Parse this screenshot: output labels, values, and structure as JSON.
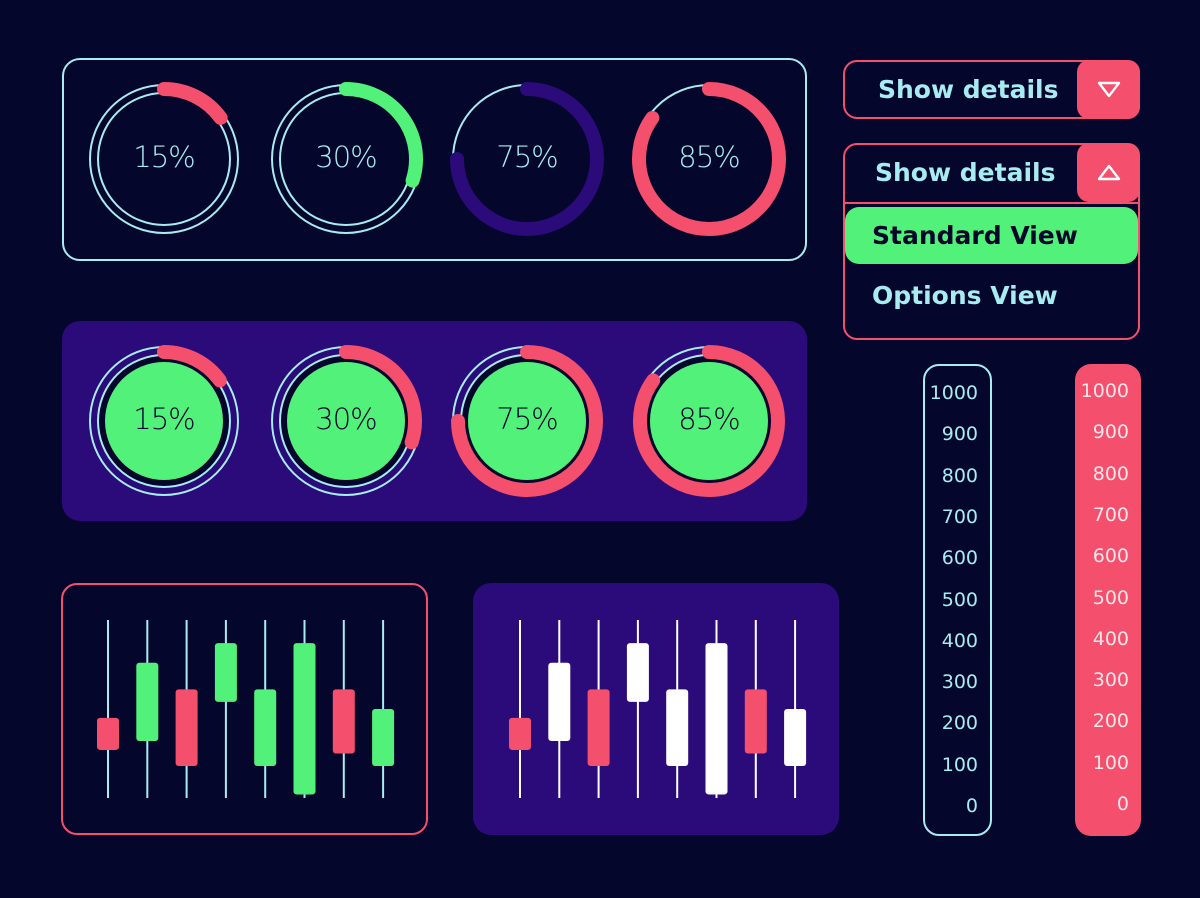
{
  "colors": {
    "background": "#05062c",
    "outline": "#a6ecf0",
    "panel_fill": "#2b0a7a",
    "accent_red": "#f44f6d",
    "accent_green": "#52f27a",
    "accent_purple": "#2b0a7a",
    "candle_white": "#ffffff"
  },
  "progress_rings_outline": [
    {
      "value": 15,
      "label": "15%",
      "color": "#f44f6d"
    },
    {
      "value": 30,
      "label": "30%",
      "color": "#52f27a"
    },
    {
      "value": 75,
      "label": "75%",
      "color": "#2b0a7a"
    },
    {
      "value": 85,
      "label": "85%",
      "color": "#f44f6d"
    }
  ],
  "progress_rings_filled": [
    {
      "value": 15,
      "label": "15%",
      "color": "#f44f6d"
    },
    {
      "value": 30,
      "label": "30%",
      "color": "#f44f6d"
    },
    {
      "value": 75,
      "label": "75%",
      "color": "#f44f6d"
    },
    {
      "value": 85,
      "label": "85%",
      "color": "#f44f6d"
    }
  ],
  "dropdown_closed": {
    "label": "Show details",
    "icon": "triangle-down-icon"
  },
  "dropdown_open": {
    "label": "Show details",
    "icon": "triangle-up-icon",
    "options": [
      {
        "label": "Standard View",
        "selected": true
      },
      {
        "label": "Options View",
        "selected": false
      }
    ]
  },
  "scale_light": {
    "ticks": [
      "1000",
      "900",
      "800",
      "700",
      "600",
      "500",
      "400",
      "300",
      "200",
      "100",
      "0"
    ]
  },
  "scale_red": {
    "ticks": [
      "1000",
      "900",
      "800",
      "700",
      "600",
      "500",
      "400",
      "300",
      "200",
      "100",
      "0"
    ]
  },
  "chart_data": [
    {
      "type": "candlestick",
      "ylim": [
        0,
        100
      ],
      "candles": [
        {
          "low": 0,
          "high": 100,
          "open": 45,
          "close": 27,
          "color": "#f44f6d"
        },
        {
          "low": 0,
          "high": 100,
          "open": 32,
          "close": 76,
          "color": "#52f27a"
        },
        {
          "low": 0,
          "high": 100,
          "open": 61,
          "close": 18,
          "color": "#f44f6d"
        },
        {
          "low": 0,
          "high": 100,
          "open": 54,
          "close": 87,
          "color": "#52f27a"
        },
        {
          "low": 0,
          "high": 100,
          "open": 18,
          "close": 61,
          "color": "#52f27a"
        },
        {
          "low": 0,
          "high": 100,
          "open": 2,
          "close": 87,
          "color": "#52f27a"
        },
        {
          "low": 0,
          "high": 100,
          "open": 61,
          "close": 25,
          "color": "#f44f6d"
        },
        {
          "low": 0,
          "high": 100,
          "open": 18,
          "close": 50,
          "color": "#52f27a"
        }
      ]
    },
    {
      "type": "candlestick",
      "ylim": [
        0,
        100
      ],
      "candles": [
        {
          "low": 0,
          "high": 100,
          "open": 45,
          "close": 27,
          "color": "#f44f6d"
        },
        {
          "low": 0,
          "high": 100,
          "open": 32,
          "close": 76,
          "color": "#ffffff"
        },
        {
          "low": 0,
          "high": 100,
          "open": 61,
          "close": 18,
          "color": "#f44f6d"
        },
        {
          "low": 0,
          "high": 100,
          "open": 54,
          "close": 87,
          "color": "#ffffff"
        },
        {
          "low": 0,
          "high": 100,
          "open": 18,
          "close": 61,
          "color": "#ffffff"
        },
        {
          "low": 0,
          "high": 100,
          "open": 2,
          "close": 87,
          "color": "#ffffff"
        },
        {
          "low": 0,
          "high": 100,
          "open": 61,
          "close": 25,
          "color": "#f44f6d"
        },
        {
          "low": 0,
          "high": 100,
          "open": 18,
          "close": 50,
          "color": "#ffffff"
        }
      ]
    }
  ]
}
